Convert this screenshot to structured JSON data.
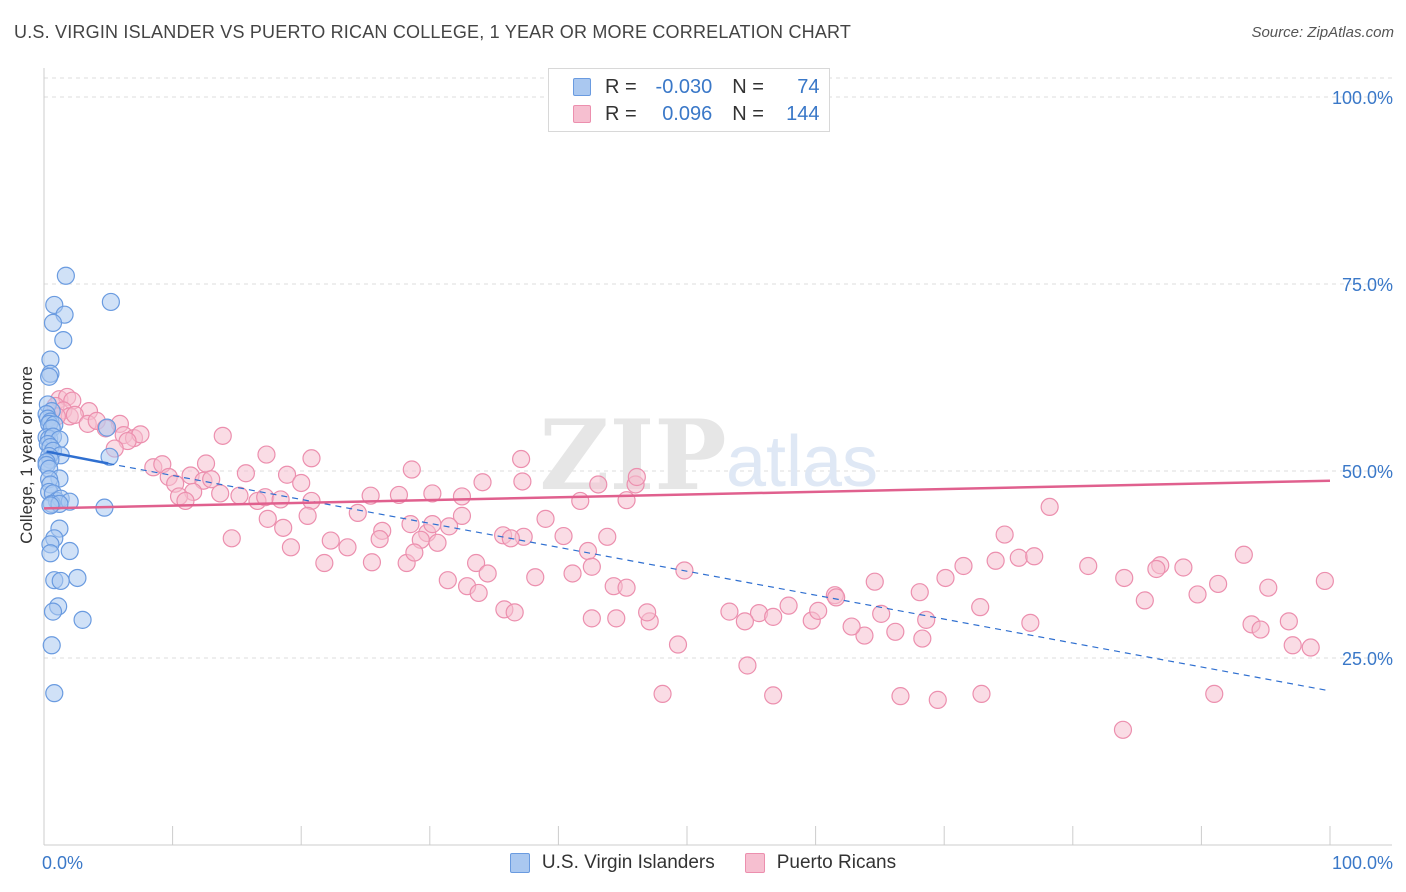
{
  "header": {
    "title": "U.S. VIRGIN ISLANDER VS PUERTO RICAN COLLEGE, 1 YEAR OR MORE CORRELATION CHART",
    "source": "Source: ZipAtlas.com"
  },
  "legend": {
    "rows": [
      {
        "r_label": "R = ",
        "r_value": "-0.030",
        "n_label": "N = ",
        "n_value": "74"
      },
      {
        "r_label": "R = ",
        "r_value": "0.096",
        "n_label": "N = ",
        "n_value": "144"
      }
    ]
  },
  "watermark": {
    "zip": "ZIP",
    "atlas": "atlas"
  },
  "colors": {
    "blue_fill": "#aac8f0",
    "blue_stroke": "#6a9be0",
    "blue_line": "#2f6fd0",
    "pink_fill": "#f6bfd0",
    "pink_stroke": "#ec8fae",
    "pink_line": "#e0608e",
    "axis_label": "#3a78c8",
    "grid": "#dddddd"
  },
  "chart_data": {
    "type": "scatter",
    "title": "U.S. VIRGIN ISLANDER VS PUERTO RICAN COLLEGE, 1 YEAR OR MORE CORRELATION CHART",
    "xlabel": "",
    "ylabel": "College, 1 year or more",
    "xlim": [
      0,
      100
    ],
    "ylim": [
      0,
      105
    ],
    "x_tick_labels": [
      "0.0%",
      "100.0%"
    ],
    "y_ticks": [
      25,
      50,
      75,
      100
    ],
    "y_tick_labels": [
      "25.0%",
      "50.0%",
      "75.0%",
      "100.0%"
    ],
    "series": [
      {
        "name": "U.S. Virgin Islanders",
        "color": "#6a9be0",
        "trend": {
          "x": [
            0.2,
            5.0
          ],
          "y": [
            52.6,
            51.0
          ],
          "solid": true
        },
        "trend_ext": {
          "x": [
            5.0,
            100
          ],
          "y": [
            51.0,
            20.6
          ],
          "dashed": true
        },
        "points": [
          [
            1.7,
            76.1
          ],
          [
            5.2,
            72.6
          ],
          [
            0.8,
            72.2
          ],
          [
            1.6,
            70.9
          ],
          [
            0.7,
            69.8
          ],
          [
            1.5,
            67.5
          ],
          [
            0.5,
            64.9
          ],
          [
            0.5,
            63.0
          ],
          [
            0.4,
            62.6
          ],
          [
            0.3,
            58.9
          ],
          [
            0.6,
            58.0
          ],
          [
            0.2,
            57.6
          ],
          [
            0.3,
            57.0
          ],
          [
            0.5,
            56.6
          ],
          [
            0.4,
            56.3
          ],
          [
            0.8,
            56.2
          ],
          [
            0.6,
            55.7
          ],
          [
            4.9,
            55.8
          ],
          [
            0.2,
            54.5
          ],
          [
            0.4,
            54.3
          ],
          [
            0.7,
            54.6
          ],
          [
            1.2,
            54.2
          ],
          [
            0.3,
            53.6
          ],
          [
            0.5,
            53.2
          ],
          [
            0.7,
            52.7
          ],
          [
            1.3,
            52.1
          ],
          [
            0.4,
            52.0
          ],
          [
            0.5,
            51.5
          ],
          [
            5.1,
            51.9
          ],
          [
            0.2,
            51.2
          ],
          [
            0.2,
            50.8
          ],
          [
            0.4,
            50.3
          ],
          [
            1.2,
            49.0
          ],
          [
            0.4,
            48.9
          ],
          [
            0.5,
            48.2
          ],
          [
            0.4,
            47.2
          ],
          [
            0.7,
            47.0
          ],
          [
            1.0,
            46.0
          ],
          [
            1.3,
            46.3
          ],
          [
            2.0,
            45.9
          ],
          [
            0.6,
            45.6
          ],
          [
            1.2,
            45.6
          ],
          [
            0.5,
            45.4
          ],
          [
            4.7,
            45.1
          ],
          [
            1.2,
            42.3
          ],
          [
            0.8,
            41.0
          ],
          [
            0.5,
            40.2
          ],
          [
            2.0,
            39.3
          ],
          [
            0.5,
            39.0
          ],
          [
            0.8,
            35.4
          ],
          [
            1.3,
            35.3
          ],
          [
            2.6,
            35.7
          ],
          [
            1.1,
            31.9
          ],
          [
            0.7,
            31.2
          ],
          [
            3.0,
            30.1
          ],
          [
            0.6,
            26.7
          ],
          [
            0.8,
            20.3
          ]
        ]
      },
      {
        "name": "Puerto Ricans",
        "color": "#ec8fae",
        "trend": {
          "x": [
            0,
            100
          ],
          "y": [
            45.0,
            48.7
          ],
          "solid": true
        },
        "points": [
          [
            1.2,
            59.6
          ],
          [
            1.8,
            59.9
          ],
          [
            2.2,
            59.4
          ],
          [
            0.9,
            58.7
          ],
          [
            1.5,
            58.1
          ],
          [
            2.0,
            57.3
          ],
          [
            3.5,
            58.0
          ],
          [
            1.0,
            57.3
          ],
          [
            2.4,
            57.5
          ],
          [
            3.4,
            56.3
          ],
          [
            4.1,
            56.7
          ],
          [
            5.9,
            56.3
          ],
          [
            4.8,
            55.7
          ],
          [
            6.2,
            54.8
          ],
          [
            7.0,
            54.4
          ],
          [
            7.5,
            54.9
          ],
          [
            6.5,
            54.0
          ],
          [
            5.5,
            53.0
          ],
          [
            13.9,
            54.7
          ],
          [
            17.3,
            52.2
          ],
          [
            20.8,
            51.7
          ],
          [
            12.6,
            51.0
          ],
          [
            8.5,
            50.5
          ],
          [
            9.2,
            50.9
          ],
          [
            28.6,
            50.2
          ],
          [
            37.1,
            51.6
          ],
          [
            18.9,
            49.5
          ],
          [
            15.7,
            49.7
          ],
          [
            9.7,
            49.2
          ],
          [
            11.4,
            49.4
          ],
          [
            10.2,
            48.3
          ],
          [
            12.4,
            48.7
          ],
          [
            13.0,
            48.9
          ],
          [
            20.0,
            48.4
          ],
          [
            34.1,
            48.5
          ],
          [
            43.1,
            48.2
          ],
          [
            37.2,
            48.6
          ],
          [
            46.0,
            48.2
          ],
          [
            46.1,
            49.2
          ],
          [
            11.6,
            47.2
          ],
          [
            10.5,
            46.6
          ],
          [
            11.0,
            46.0
          ],
          [
            13.7,
            47.0
          ],
          [
            15.2,
            46.7
          ],
          [
            16.6,
            46.0
          ],
          [
            17.2,
            46.5
          ],
          [
            18.4,
            46.2
          ],
          [
            20.8,
            46.0
          ],
          [
            25.4,
            46.7
          ],
          [
            27.6,
            46.8
          ],
          [
            30.2,
            47.0
          ],
          [
            32.5,
            46.6
          ],
          [
            41.7,
            46.0
          ],
          [
            45.3,
            46.1
          ],
          [
            17.4,
            43.6
          ],
          [
            18.6,
            42.4
          ],
          [
            20.5,
            44.0
          ],
          [
            24.4,
            44.4
          ],
          [
            28.5,
            42.9
          ],
          [
            32.5,
            44.0
          ],
          [
            26.3,
            42.0
          ],
          [
            29.8,
            41.7
          ],
          [
            30.2,
            42.9
          ],
          [
            31.5,
            42.6
          ],
          [
            37.3,
            41.2
          ],
          [
            35.7,
            41.4
          ],
          [
            14.6,
            41.0
          ],
          [
            19.2,
            39.8
          ],
          [
            22.3,
            40.7
          ],
          [
            23.6,
            39.8
          ],
          [
            26.1,
            40.9
          ],
          [
            29.3,
            40.8
          ],
          [
            39.0,
            43.6
          ],
          [
            42.3,
            39.3
          ],
          [
            40.4,
            41.3
          ],
          [
            43.8,
            41.2
          ],
          [
            36.3,
            41.0
          ],
          [
            21.8,
            37.7
          ],
          [
            25.5,
            37.8
          ],
          [
            28.2,
            37.7
          ],
          [
            38.2,
            35.8
          ],
          [
            30.6,
            40.4
          ],
          [
            28.8,
            39.1
          ],
          [
            33.6,
            37.7
          ],
          [
            34.5,
            36.3
          ],
          [
            32.9,
            34.6
          ],
          [
            42.6,
            37.2
          ],
          [
            41.1,
            36.3
          ],
          [
            49.8,
            36.7
          ],
          [
            31.4,
            35.4
          ],
          [
            33.8,
            33.7
          ],
          [
            44.3,
            34.6
          ],
          [
            45.3,
            34.4
          ],
          [
            35.8,
            31.5
          ],
          [
            36.6,
            31.1
          ],
          [
            42.6,
            30.3
          ],
          [
            44.5,
            30.3
          ],
          [
            47.1,
            29.9
          ],
          [
            46.9,
            31.1
          ],
          [
            53.3,
            31.2
          ],
          [
            55.6,
            31.0
          ],
          [
            56.7,
            30.5
          ],
          [
            49.3,
            26.8
          ],
          [
            48.1,
            20.2
          ],
          [
            59.7,
            30.0
          ],
          [
            61.5,
            33.4
          ],
          [
            57.9,
            32.0
          ],
          [
            60.2,
            31.3
          ],
          [
            63.8,
            28.0
          ],
          [
            65.1,
            30.9
          ],
          [
            68.3,
            27.6
          ],
          [
            66.2,
            28.5
          ],
          [
            70.1,
            35.7
          ],
          [
            72.8,
            31.8
          ],
          [
            76.7,
            29.7
          ],
          [
            69.5,
            19.4
          ],
          [
            66.6,
            19.9
          ],
          [
            56.7,
            20.0
          ],
          [
            61.6,
            33.1
          ],
          [
            68.6,
            30.1
          ],
          [
            62.8,
            29.2
          ],
          [
            54.5,
            29.9
          ],
          [
            54.7,
            24.0
          ],
          [
            71.5,
            37.3
          ],
          [
            74.0,
            38.0
          ],
          [
            75.8,
            38.4
          ],
          [
            77.0,
            38.6
          ],
          [
            74.7,
            41.5
          ],
          [
            78.2,
            45.2
          ],
          [
            64.6,
            35.2
          ],
          [
            68.1,
            33.8
          ],
          [
            72.9,
            20.2
          ],
          [
            81.2,
            37.3
          ],
          [
            84.0,
            35.7
          ],
          [
            85.6,
            32.7
          ],
          [
            86.8,
            37.4
          ],
          [
            86.5,
            36.9
          ],
          [
            88.6,
            37.1
          ],
          [
            89.7,
            33.5
          ],
          [
            91.3,
            34.9
          ],
          [
            93.3,
            38.8
          ],
          [
            93.9,
            29.5
          ],
          [
            94.6,
            28.8
          ],
          [
            95.2,
            34.4
          ],
          [
            96.8,
            29.9
          ],
          [
            97.1,
            26.7
          ],
          [
            98.5,
            26.4
          ],
          [
            99.6,
            35.3
          ],
          [
            83.9,
            15.4
          ],
          [
            91.0,
            20.2
          ]
        ]
      }
    ]
  }
}
